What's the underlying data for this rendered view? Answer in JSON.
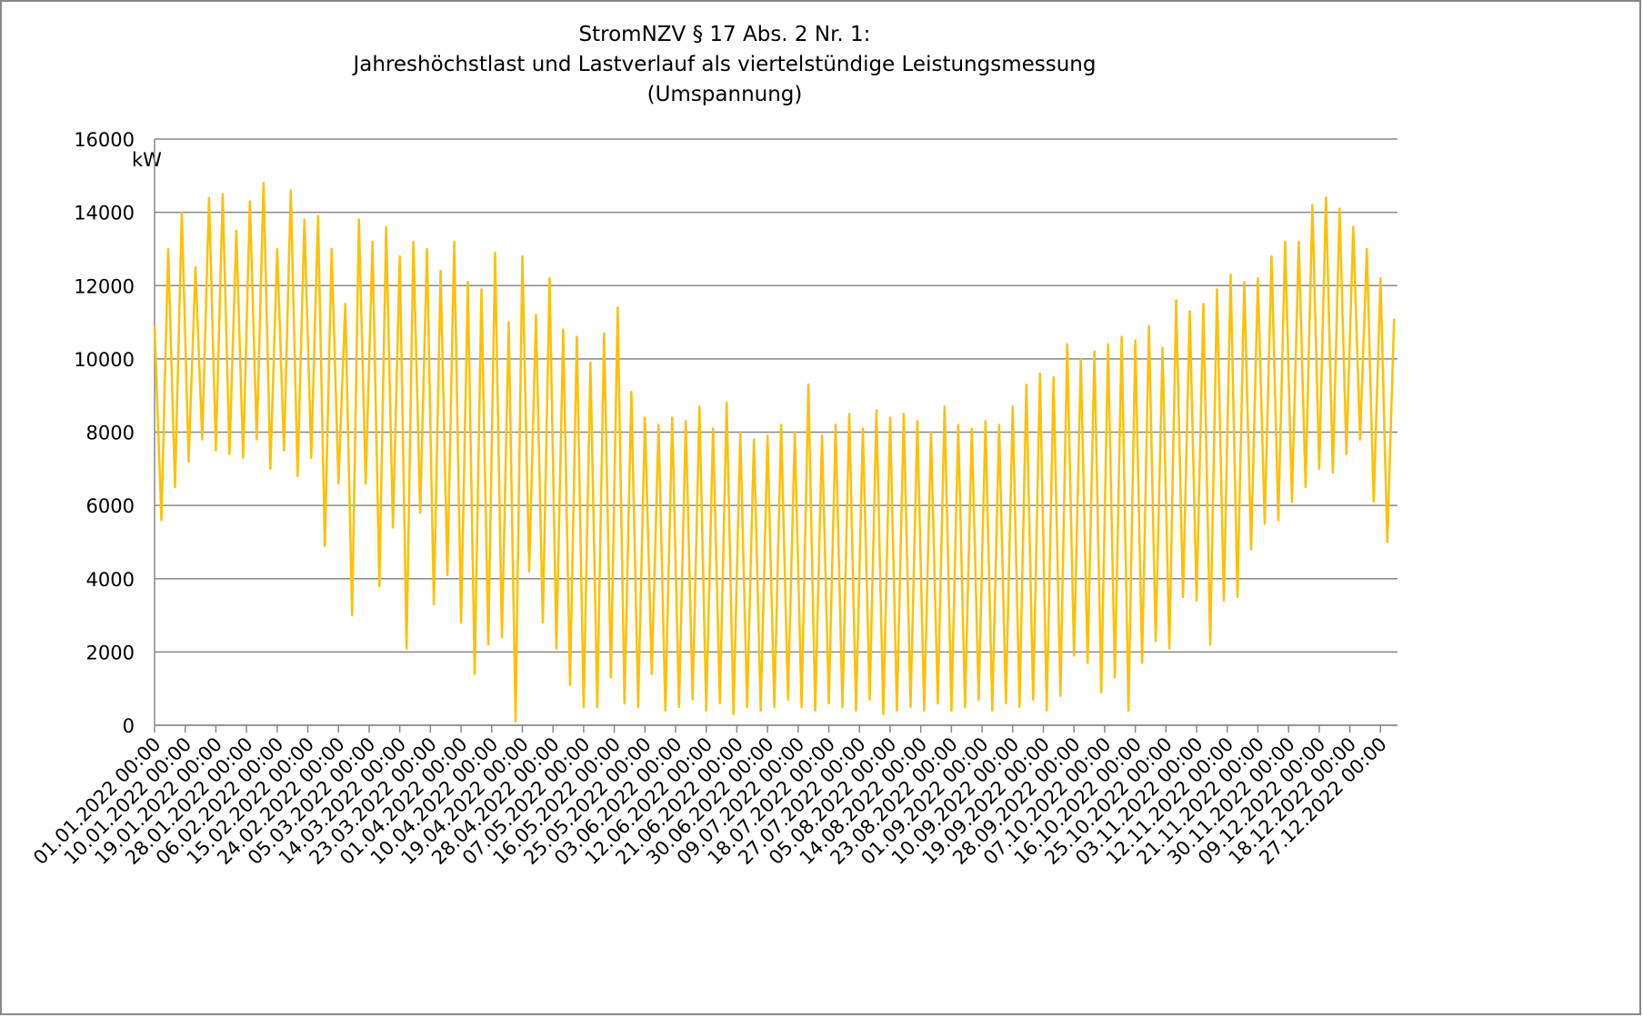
{
  "chart_data": {
    "type": "line",
    "title": [
      "StromNZV § 17 Abs. 2 Nr. 1:",
      "Jahreshöchstlast und Lastverlauf als viertelstündige Leistungsmessung",
      "(Umspannung)"
    ],
    "y_label": "kW",
    "xlim": [
      0,
      365
    ],
    "xticks": [
      {
        "value": 0,
        "label": "01.01.2022 00:00"
      },
      {
        "value": 9,
        "label": "10.01.2022 00:00"
      },
      {
        "value": 18,
        "label": "19.01.2022 00:00"
      },
      {
        "value": 27,
        "label": "28.01.2022 00:00"
      },
      {
        "value": 36,
        "label": "06.02.2022 00:00"
      },
      {
        "value": 45,
        "label": "15.02.2022 00:00"
      },
      {
        "value": 54,
        "label": "24.02.2022 00:00"
      },
      {
        "value": 63,
        "label": "05.03.2022 00:00"
      },
      {
        "value": 72,
        "label": "14.03.2022 00:00"
      },
      {
        "value": 81,
        "label": "23.03.2022 00:00"
      },
      {
        "value": 90,
        "label": "01.04.2022 00:00"
      },
      {
        "value": 99,
        "label": "10.04.2022 00:00"
      },
      {
        "value": 108,
        "label": "19.04.2022 00:00"
      },
      {
        "value": 117,
        "label": "28.04.2022 00:00"
      },
      {
        "value": 126,
        "label": "07.05.2022 00:00"
      },
      {
        "value": 135,
        "label": "16.05.2022 00:00"
      },
      {
        "value": 144,
        "label": "25.05.2022 00:00"
      },
      {
        "value": 153,
        "label": "03.06.2022 00:00"
      },
      {
        "value": 162,
        "label": "12.06.2022 00:00"
      },
      {
        "value": 171,
        "label": "21.06.2022 00:00"
      },
      {
        "value": 180,
        "label": "30.06.2022 00:00"
      },
      {
        "value": 189,
        "label": "09.07.2022 00:00"
      },
      {
        "value": 198,
        "label": "18.07.2022 00:00"
      },
      {
        "value": 207,
        "label": "27.07.2022 00:00"
      },
      {
        "value": 216,
        "label": "05.08.2022 00:00"
      },
      {
        "value": 225,
        "label": "14.08.2022 00:00"
      },
      {
        "value": 234,
        "label": "23.08.2022 00:00"
      },
      {
        "value": 243,
        "label": "01.09.2022 00:00"
      },
      {
        "value": 252,
        "label": "10.09.2022 00:00"
      },
      {
        "value": 261,
        "label": "19.09.2022 00:00"
      },
      {
        "value": 270,
        "label": "28.09.2022 00:00"
      },
      {
        "value": 279,
        "label": "07.10.2022 00:00"
      },
      {
        "value": 288,
        "label": "16.10.2022 00:00"
      },
      {
        "value": 297,
        "label": "25.10.2022 00:00"
      },
      {
        "value": 306,
        "label": "03.11.2022 00:00"
      },
      {
        "value": 315,
        "label": "12.11.2022 00:00"
      },
      {
        "value": 324,
        "label": "21.11.2022 00:00"
      },
      {
        "value": 333,
        "label": "30.11.2022 00:00"
      },
      {
        "value": 342,
        "label": "09.12.2022 00:00"
      },
      {
        "value": 351,
        "label": "18.12.2022 00:00"
      },
      {
        "value": 360,
        "label": "27.12.2022 00:00"
      }
    ],
    "ylim": [
      0,
      16000
    ],
    "yticks": [
      0,
      2000,
      4000,
      6000,
      8000,
      10000,
      12000,
      14000,
      16000
    ],
    "grid": true,
    "x": [
      0,
      2,
      4,
      6,
      8,
      10,
      12,
      14,
      16,
      18,
      20,
      22,
      24,
      26,
      28,
      30,
      32,
      34,
      36,
      38,
      40,
      42,
      44,
      46,
      48,
      50,
      52,
      54,
      56,
      58,
      60,
      62,
      64,
      66,
      68,
      70,
      72,
      74,
      76,
      78,
      80,
      82,
      84,
      86,
      88,
      90,
      92,
      94,
      96,
      98,
      100,
      102,
      104,
      106,
      108,
      110,
      112,
      114,
      116,
      118,
      120,
      122,
      124,
      126,
      128,
      130,
      132,
      134,
      136,
      138,
      140,
      142,
      144,
      146,
      148,
      150,
      152,
      154,
      156,
      158,
      160,
      162,
      164,
      166,
      168,
      170,
      172,
      174,
      176,
      178,
      180,
      182,
      184,
      186,
      188,
      190,
      192,
      194,
      196,
      198,
      200,
      202,
      204,
      206,
      208,
      210,
      212,
      214,
      216,
      218,
      220,
      222,
      224,
      226,
      228,
      230,
      232,
      234,
      236,
      238,
      240,
      242,
      244,
      246,
      248,
      250,
      252,
      254,
      256,
      258,
      260,
      262,
      264,
      266,
      268,
      270,
      272,
      274,
      276,
      278,
      280,
      282,
      284,
      286,
      288,
      290,
      292,
      294,
      296,
      298,
      300,
      302,
      304,
      306,
      308,
      310,
      312,
      314,
      316,
      318,
      320,
      322,
      324,
      326,
      328,
      330,
      332,
      334,
      336,
      338,
      340,
      342,
      344,
      346,
      348,
      350,
      352,
      354,
      356,
      358,
      360,
      362,
      364
    ],
    "series": [
      {
        "color": "#ffc000",
        "values": [
          10900,
          5600,
          13000,
          6500,
          14000,
          7200,
          12500,
          7800,
          14400,
          7500,
          14500,
          7400,
          13500,
          7300,
          14300,
          7800,
          14800,
          7000,
          13000,
          7500,
          14600,
          6800,
          13800,
          7300,
          13900,
          4900,
          13000,
          6600,
          11500,
          3000,
          13800,
          6600,
          13200,
          3800,
          13600,
          5400,
          12800,
          2100,
          13200,
          5800,
          13000,
          3300,
          12400,
          4100,
          13200,
          2800,
          12100,
          1400,
          11900,
          2200,
          12900,
          2400,
          11000,
          100,
          12800,
          4200,
          11200,
          2800,
          12200,
          2100,
          10800,
          1100,
          10600,
          500,
          9900,
          500,
          10700,
          1300,
          11400,
          600,
          9100,
          500,
          8400,
          1400,
          8200,
          400,
          8400,
          500,
          8300,
          700,
          8700,
          400,
          8100,
          600,
          8800,
          300,
          8000,
          500,
          7800,
          400,
          7900,
          500,
          8200,
          700,
          8000,
          500,
          9300,
          400,
          7900,
          600,
          8200,
          500,
          8500,
          400,
          8100,
          700,
          8600,
          300,
          8400,
          400,
          8500,
          500,
          8300,
          400,
          8000,
          600,
          8700,
          400,
          8200,
          500,
          8100,
          700,
          8300,
          400,
          8200,
          600,
          8700,
          500,
          9300,
          700,
          9600,
          400,
          9500,
          800,
          10400,
          1900,
          10000,
          1700,
          10200,
          900,
          10400,
          1300,
          10600,
          400,
          10500,
          1700,
          10900,
          2300,
          10300,
          2100,
          11600,
          3500,
          11300,
          3400,
          11500,
          2200,
          11900,
          3400,
          12300,
          3500,
          12100,
          4800,
          12200,
          5500,
          12800,
          5600,
          13200,
          6100,
          13200,
          6500,
          14200,
          7000,
          14400,
          6900,
          14100,
          7400,
          13600,
          7800,
          13000,
          6100,
          12200,
          5000,
          11100
        ]
      }
    ]
  }
}
